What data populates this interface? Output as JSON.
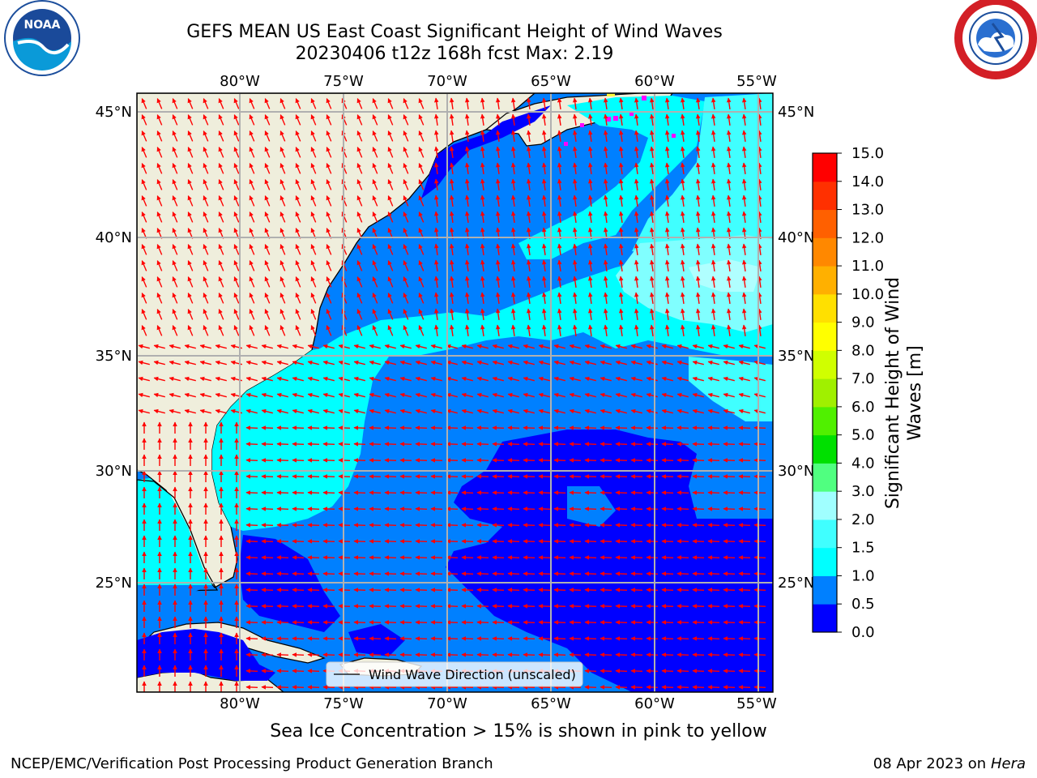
{
  "header": {
    "title_line1": "GEFS MEAN US East Coast Significant Height of Wind Waves",
    "title_line2": "20230406 t12z 168h fcst   Max: 2.19"
  },
  "logos": {
    "left": "noara-logo",
    "right": "national-weather-service-logo"
  },
  "map": {
    "lon_ticks": [
      "80°W",
      "75°W",
      "70°W",
      "65°W",
      "60°W",
      "55°W"
    ],
    "lat_ticks": [
      "45°N",
      "40°N",
      "35°N",
      "30°N",
      "25°N"
    ],
    "legend_label": "Wind Wave Direction (unscaled)",
    "colors": {
      "land": "#efeedc",
      "coast": "#000000",
      "grid": "#b0b0b0",
      "arrows": "#ff0000",
      "ice": "#ff00ff"
    }
  },
  "colorbar": {
    "label_line1": "Significant Height of Wind",
    "label_line2": "Waves [m]",
    "ticks": [
      "0.0",
      "0.5",
      "1.0",
      "1.5",
      "2.0",
      "3.0",
      "4.0",
      "5.0",
      "6.0",
      "7.0",
      "8.0",
      "9.0",
      "10.0",
      "11.0",
      "12.0",
      "13.0",
      "14.0",
      "15.0"
    ],
    "colors": [
      "#0000ff",
      "#0080ff",
      "#00ffff",
      "#40ffff",
      "#a0ffff",
      "#50ff80",
      "#00e000",
      "#50f000",
      "#a0f000",
      "#d0ff00",
      "#ffff00",
      "#ffe000",
      "#ffb000",
      "#ff8800",
      "#ff6000",
      "#ff3000",
      "#ff0000"
    ]
  },
  "footer": {
    "subtitle": "Sea Ice Concentration > 15% is shown in pink to yellow",
    "credit": "NCEP/EMC/Verification Post Processing Product Generation Branch",
    "date": "08 Apr 2023 on",
    "machine": "Hera"
  }
}
